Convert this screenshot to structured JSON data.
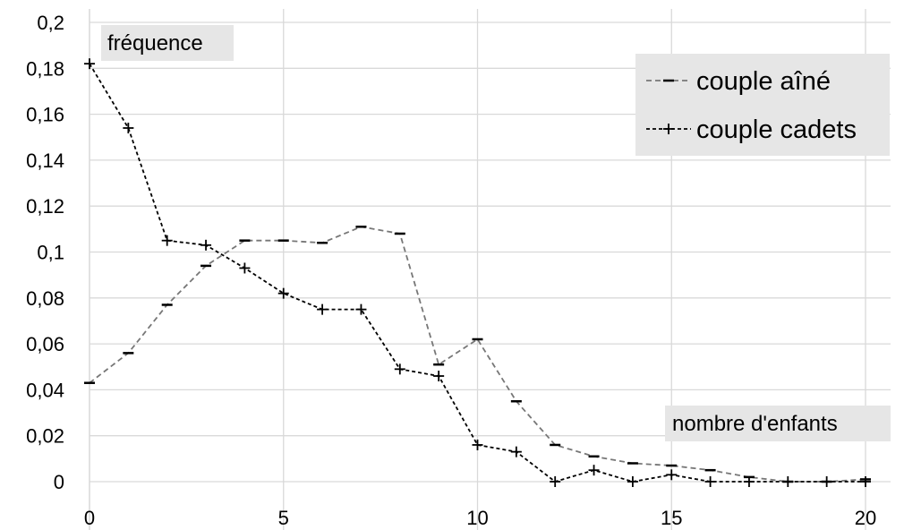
{
  "chart_data": {
    "type": "line",
    "ylabel": "fréquence",
    "xlabel": "nombre d'enfants",
    "xlim": [
      0,
      20
    ],
    "ylim": [
      0,
      0.2
    ],
    "x_ticks": [
      0,
      5,
      10,
      15,
      20
    ],
    "y_ticks": [
      0,
      0.02,
      0.04,
      0.06,
      0.08,
      0.1,
      0.12,
      0.14,
      0.16,
      0.18,
      0.2
    ],
    "x_tick_labels": [
      "0",
      "5",
      "10",
      "15",
      "20"
    ],
    "y_tick_labels": [
      "0",
      "0,02",
      "0,04",
      "0,06",
      "0,08",
      "0,1",
      "0,12",
      "0,14",
      "0,16",
      "0,18",
      "0,2"
    ],
    "grid": true,
    "legend_position": "top-right",
    "series": [
      {
        "name": "couple aîné",
        "color": "#777777",
        "marker": "dash",
        "x": [
          0,
          1,
          2,
          3,
          4,
          5,
          6,
          7,
          8,
          9,
          10,
          11,
          12,
          13,
          14,
          15,
          16,
          17,
          18,
          19,
          20
        ],
        "values": [
          0.043,
          0.056,
          0.077,
          0.094,
          0.105,
          0.105,
          0.104,
          0.111,
          0.108,
          0.051,
          0.062,
          0.035,
          0.016,
          0.011,
          0.008,
          0.007,
          0.005,
          0.002,
          0.0,
          0.0,
          0.001
        ]
      },
      {
        "name": "couple cadets",
        "color": "#000000",
        "marker": "plus",
        "x": [
          0,
          1,
          2,
          3,
          4,
          5,
          6,
          7,
          8,
          9,
          10,
          11,
          12,
          13,
          14,
          15,
          16,
          17,
          18,
          19,
          20
        ],
        "values": [
          0.182,
          0.154,
          0.105,
          0.103,
          0.093,
          0.082,
          0.075,
          0.075,
          0.049,
          0.046,
          0.016,
          0.013,
          0.0,
          0.005,
          0.0,
          0.003,
          0.0,
          0.0,
          0.0,
          0.0,
          0.0
        ]
      }
    ]
  }
}
